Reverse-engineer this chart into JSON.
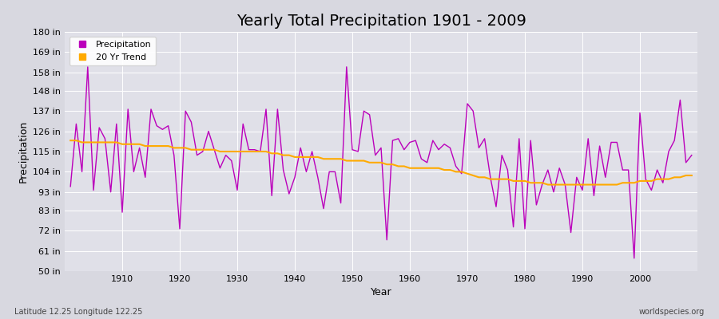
{
  "title": "Yearly Total Precipitation 1901 - 2009",
  "xlabel": "Year",
  "ylabel": "Precipitation",
  "footnote_left": "Latitude 12.25 Longitude 122.25",
  "footnote_right": "worldspecies.org",
  "legend_labels": [
    "Precipitation",
    "20 Yr Trend"
  ],
  "precip_color": "#bb00bb",
  "trend_color": "#ffaa00",
  "fig_facecolor": "#d8d8e0",
  "ax_facecolor": "#e0e0e8",
  "grid_color": "#ffffff",
  "ylim": [
    50,
    180
  ],
  "yticks": [
    50,
    61,
    72,
    83,
    93,
    104,
    115,
    126,
    137,
    148,
    158,
    169,
    180
  ],
  "ytick_labels": [
    "50 in",
    "61 in",
    "72 in",
    "83 in",
    "93 in",
    "104 in",
    "115 in",
    "126 in",
    "137 in",
    "148 in",
    "158 in",
    "169 in",
    "180 in"
  ],
  "xlim": [
    1900,
    2010
  ],
  "xticks": [
    1910,
    1920,
    1930,
    1940,
    1950,
    1960,
    1970,
    1980,
    1990,
    2000
  ],
  "years": [
    1901,
    1902,
    1903,
    1904,
    1905,
    1906,
    1907,
    1908,
    1909,
    1910,
    1911,
    1912,
    1913,
    1914,
    1915,
    1916,
    1917,
    1918,
    1919,
    1920,
    1921,
    1922,
    1923,
    1924,
    1925,
    1926,
    1927,
    1928,
    1929,
    1930,
    1931,
    1932,
    1933,
    1934,
    1935,
    1936,
    1937,
    1938,
    1939,
    1940,
    1941,
    1942,
    1943,
    1944,
    1945,
    1946,
    1947,
    1948,
    1949,
    1950,
    1951,
    1952,
    1953,
    1954,
    1955,
    1956,
    1957,
    1958,
    1959,
    1960,
    1961,
    1962,
    1963,
    1964,
    1965,
    1966,
    1967,
    1968,
    1969,
    1970,
    1971,
    1972,
    1973,
    1974,
    1975,
    1976,
    1977,
    1978,
    1979,
    1980,
    1981,
    1982,
    1983,
    1984,
    1985,
    1986,
    1987,
    1988,
    1989,
    1990,
    1991,
    1992,
    1993,
    1994,
    1995,
    1996,
    1997,
    1998,
    1999,
    2000,
    2001,
    2002,
    2003,
    2004,
    2005,
    2006,
    2007,
    2008,
    2009
  ],
  "precip": [
    96,
    130,
    104,
    161,
    94,
    128,
    122,
    93,
    130,
    82,
    138,
    104,
    117,
    101,
    138,
    129,
    127,
    129,
    113,
    73,
    137,
    131,
    113,
    115,
    126,
    116,
    106,
    113,
    110,
    94,
    130,
    116,
    116,
    115,
    138,
    91,
    138,
    105,
    92,
    101,
    117,
    104,
    115,
    101,
    84,
    104,
    104,
    87,
    161,
    116,
    115,
    137,
    135,
    113,
    117,
    67,
    121,
    122,
    116,
    120,
    121,
    111,
    109,
    121,
    116,
    119,
    117,
    107,
    103,
    141,
    137,
    117,
    122,
    101,
    85,
    113,
    105,
    74,
    122,
    73,
    121,
    86,
    97,
    105,
    93,
    106,
    97,
    71,
    101,
    94,
    122,
    91,
    118,
    101,
    120,
    120,
    105,
    105,
    57,
    136,
    100,
    94,
    105,
    98,
    115,
    121,
    143,
    109,
    113
  ],
  "trend": [
    121,
    121,
    120,
    120,
    120,
    120,
    120,
    120,
    120,
    119,
    119,
    119,
    119,
    118,
    118,
    118,
    118,
    118,
    117,
    117,
    117,
    116,
    116,
    116,
    116,
    116,
    115,
    115,
    115,
    115,
    115,
    115,
    115,
    115,
    115,
    114,
    114,
    113,
    113,
    112,
    112,
    112,
    112,
    112,
    111,
    111,
    111,
    111,
    110,
    110,
    110,
    110,
    109,
    109,
    109,
    108,
    108,
    107,
    107,
    106,
    106,
    106,
    106,
    106,
    106,
    105,
    105,
    104,
    104,
    103,
    102,
    101,
    101,
    100,
    100,
    100,
    100,
    99,
    99,
    99,
    98,
    98,
    98,
    97,
    97,
    97,
    97,
    97,
    97,
    97,
    97,
    97,
    97,
    97,
    97,
    97,
    98,
    98,
    98,
    99,
    99,
    99,
    100,
    100,
    100,
    101,
    101,
    102,
    102
  ],
  "title_fontsize": 14,
  "axis_label_fontsize": 9,
  "tick_fontsize": 8,
  "legend_fontsize": 8,
  "footnote_fontsize": 7
}
